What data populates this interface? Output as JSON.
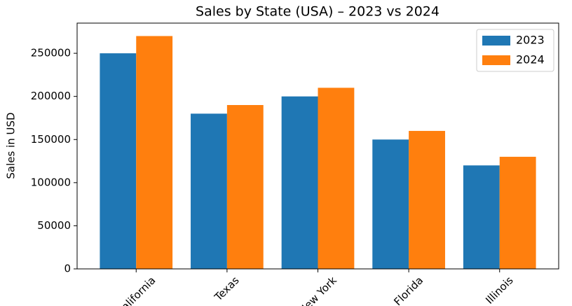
{
  "chart_data": {
    "type": "bar",
    "title": "Sales by State (USA) – 2023 vs 2024",
    "y_label": "Sales in USD",
    "categories": [
      "California",
      "Texas",
      "New York",
      "Florida",
      "Illinois"
    ],
    "series": [
      {
        "name": "2023",
        "color": "#1f77b4",
        "values": [
          250000,
          180000,
          200000,
          150000,
          120000
        ]
      },
      {
        "name": "2024",
        "color": "#ff7f0e",
        "values": [
          270000,
          190000,
          210000,
          160000,
          130000
        ]
      }
    ],
    "ylim": [
      0,
      285000
    ],
    "yticks": [
      0,
      50000,
      100000,
      150000,
      200000,
      250000
    ],
    "legend": "upper right"
  }
}
